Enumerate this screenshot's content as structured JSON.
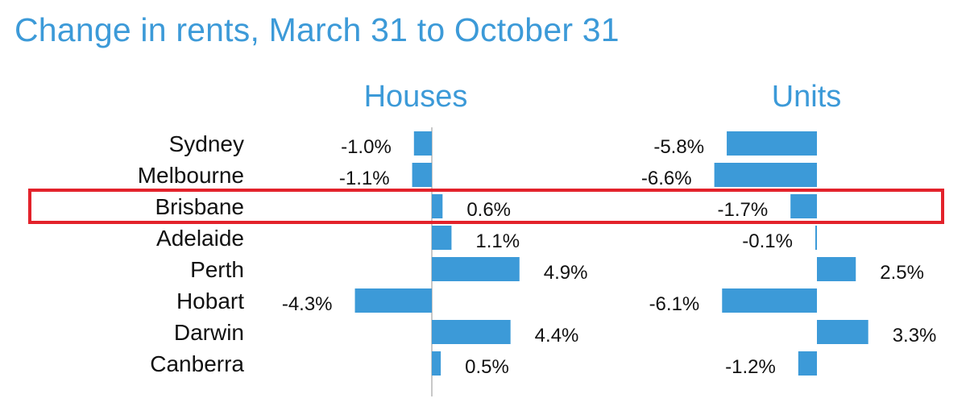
{
  "colors": {
    "bar": "#3c9ad8",
    "highlight": "#e3222b",
    "title": "#3c9ad8"
  },
  "chart_data": {
    "type": "bar",
    "orientation": "horizontal",
    "title": "Change in rents, March 31 to October 31",
    "categories": [
      "Sydney",
      "Melbourne",
      "Brisbane",
      "Adelaide",
      "Perth",
      "Hobart",
      "Darwin",
      "Canberra"
    ],
    "highlighted_category": "Brisbane",
    "panels": [
      {
        "name": "Houses",
        "values": [
          -1.0,
          -1.1,
          0.6,
          1.1,
          4.9,
          -4.3,
          4.4,
          0.5
        ],
        "labels": [
          "-1.0%",
          "-1.1%",
          "0.6%",
          "1.1%",
          "4.9%",
          "-4.3%",
          "4.4%",
          "0.5%"
        ]
      },
      {
        "name": "Units",
        "values": [
          -5.8,
          -6.6,
          -1.7,
          -0.1,
          2.5,
          -6.1,
          3.3,
          -1.2
        ],
        "labels": [
          "-5.8%",
          "-6.6%",
          "-1.7%",
          "-0.1%",
          "2.5%",
          "-6.1%",
          "3.3%",
          "-1.2%"
        ]
      }
    ]
  }
}
